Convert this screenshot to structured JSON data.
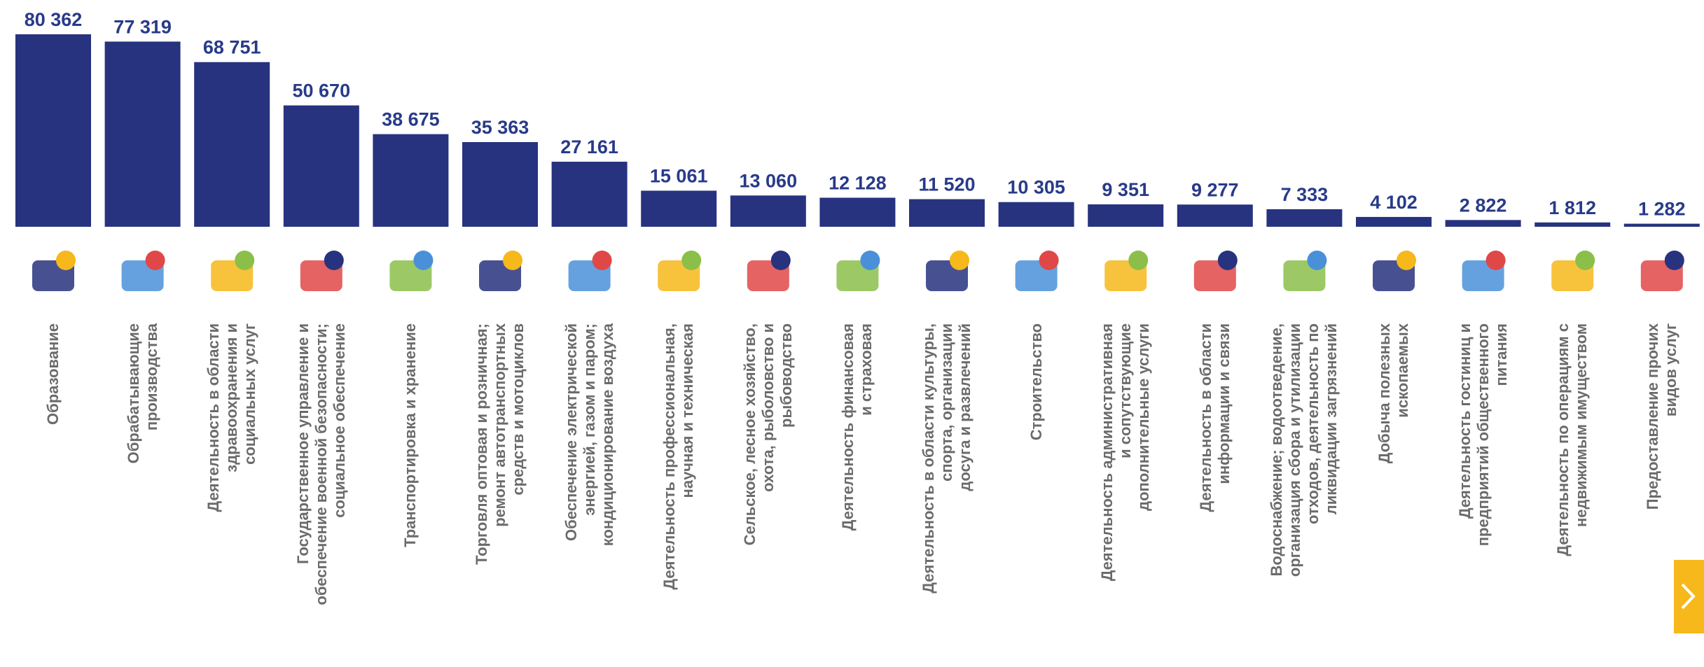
{
  "chart_data": {
    "type": "bar",
    "categories": [
      "Образование",
      "Обрабатывающие\nпроизводства",
      "Деятельность в области\nздравоохранения и\nсоциальных услуг",
      "Государственное управление и\nобеспечение военной безопасности;\nсоциальное обеспечение",
      "Транспортировка и хранение",
      "Торговля оптовая и розничная;\nремонт автотранспортных\nсредств и мотоциклов",
      "Обеспечение электрической\nэнергией, газом и паром;\nкондиционирование воздуха",
      "Деятельность профессиональная,\nнаучная и техническая",
      "Сельское, лесное хозяйство,\nохота, рыболовство и\nрыбоводство",
      "Деятельность финансовая\nи страховая",
      "Деятельность в области культуры,\nспорта, организации\nдосуга и развлечений",
      "Строительство",
      "Деятельность административная\nи сопутствующие\nдополнительные услуги",
      "Деятельность в области\nинформации и связи",
      "Водоснабжение; водоотведение,\nорганизация сбора и утилизации\nотходов, деятельность по\nликвидации загрязнений",
      "Добыча полезных\nископаемых",
      "Деятельность гостиниц и\nпредприятий общественного\nпитания",
      "Деятельность по операциям с\nнедвижимым имуществом",
      "Предоставление прочих\nвидов услуг"
    ],
    "values": [
      80362,
      77319,
      68751,
      50670,
      38675,
      35363,
      27161,
      15061,
      13060,
      12128,
      11520,
      10305,
      9351,
      9277,
      7333,
      4102,
      2822,
      1812,
      1282
    ],
    "value_labels": [
      "80 362",
      "77 319",
      "68 751",
      "50 670",
      "38 675",
      "35 363",
      "27 161",
      "15 061",
      "13 060",
      "12 128",
      "11 520",
      "10 305",
      "9 351",
      "9 277",
      "7 333",
      "4 102",
      "2 822",
      "1 812",
      "1 282"
    ],
    "color": "#27337f"
  }
}
